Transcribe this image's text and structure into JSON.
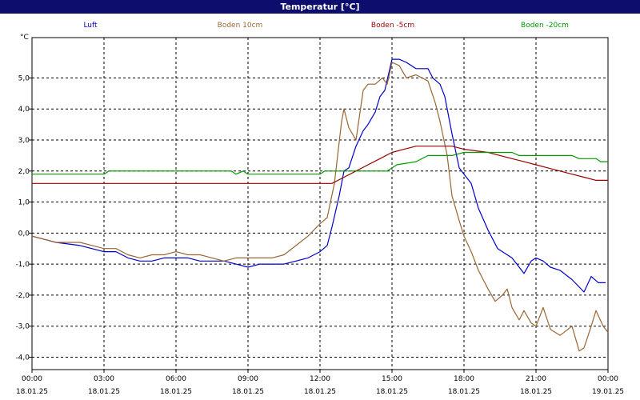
{
  "window": {
    "title": "Temperatur [°C]"
  },
  "chart_data": {
    "type": "line",
    "title": "Temperatur [°C]",
    "ylabel": "°C",
    "xlabel": "",
    "ylim": [
      -4.4,
      6.3
    ],
    "xlim_hours": [
      0,
      24
    ],
    "grid": true,
    "legend_position": "top",
    "y_ticks": [
      "5,0",
      "4,0",
      "3,0",
      "2,0",
      "1,0",
      "0,0",
      "-1,0",
      "-2,0",
      "-3,0",
      "-4,0"
    ],
    "x_ticks": [
      {
        "time": "00:00",
        "date": "18.01.25"
      },
      {
        "time": "03:00",
        "date": "18.01.25"
      },
      {
        "time": "06:00",
        "date": "18.01.25"
      },
      {
        "time": "09:00",
        "date": "18.01.25"
      },
      {
        "time": "12:00",
        "date": "18.01.25"
      },
      {
        "time": "15:00",
        "date": "18.01.25"
      },
      {
        "time": "18:00",
        "date": "18.01.25"
      },
      {
        "time": "21:00",
        "date": "18.01.25"
      },
      {
        "time": "00:00",
        "date": "19.01.25"
      }
    ],
    "series": [
      {
        "name": "Luft",
        "color": "#0000cc",
        "points": [
          [
            0,
            -0.1
          ],
          [
            0.5,
            -0.2
          ],
          [
            1,
            -0.3
          ],
          [
            2,
            -0.4
          ],
          [
            3,
            -0.6
          ],
          [
            3.5,
            -0.6
          ],
          [
            4,
            -0.8
          ],
          [
            4.5,
            -0.9
          ],
          [
            5,
            -0.9
          ],
          [
            5.5,
            -0.8
          ],
          [
            6,
            -0.8
          ],
          [
            6.5,
            -0.8
          ],
          [
            7,
            -0.9
          ],
          [
            8,
            -0.9
          ],
          [
            8.5,
            -1.0
          ],
          [
            9,
            -1.1
          ],
          [
            9.5,
            -1.0
          ],
          [
            10,
            -1.0
          ],
          [
            10.5,
            -1.0
          ],
          [
            11,
            -0.9
          ],
          [
            11.5,
            -0.8
          ],
          [
            12,
            -0.6
          ],
          [
            12.3,
            -0.4
          ],
          [
            12.5,
            0.2
          ],
          [
            12.8,
            1.2
          ],
          [
            13,
            2.0
          ],
          [
            13.2,
            2.1
          ],
          [
            13.5,
            2.8
          ],
          [
            13.8,
            3.3
          ],
          [
            14,
            3.5
          ],
          [
            14.3,
            3.9
          ],
          [
            14.5,
            4.4
          ],
          [
            14.7,
            4.6
          ],
          [
            15,
            5.6
          ],
          [
            15.3,
            5.6
          ],
          [
            15.6,
            5.5
          ],
          [
            16,
            5.3
          ],
          [
            16.5,
            5.3
          ],
          [
            16.7,
            5.0
          ],
          [
            17,
            4.8
          ],
          [
            17.2,
            4.4
          ],
          [
            17.5,
            3.2
          ],
          [
            17.8,
            2.1
          ],
          [
            18,
            1.9
          ],
          [
            18.3,
            1.6
          ],
          [
            18.6,
            0.8
          ],
          [
            19,
            0.1
          ],
          [
            19.4,
            -0.5
          ],
          [
            19.8,
            -0.7
          ],
          [
            20,
            -0.8
          ],
          [
            20.3,
            -1.1
          ],
          [
            20.5,
            -1.3
          ],
          [
            20.8,
            -0.9
          ],
          [
            21,
            -0.8
          ],
          [
            21.3,
            -0.9
          ],
          [
            21.6,
            -1.1
          ],
          [
            22,
            -1.2
          ],
          [
            22.5,
            -1.5
          ],
          [
            23,
            -1.9
          ],
          [
            23.3,
            -1.4
          ],
          [
            23.6,
            -1.6
          ],
          [
            23.9,
            -1.6
          ]
        ]
      },
      {
        "name": "Boden 10cm",
        "color": "#996633",
        "points": [
          [
            0,
            -0.1
          ],
          [
            0.5,
            -0.2
          ],
          [
            1,
            -0.3
          ],
          [
            2,
            -0.3
          ],
          [
            3,
            -0.5
          ],
          [
            3.5,
            -0.5
          ],
          [
            4,
            -0.7
          ],
          [
            4.5,
            -0.8
          ],
          [
            5,
            -0.7
          ],
          [
            5.5,
            -0.7
          ],
          [
            6,
            -0.6
          ],
          [
            6.5,
            -0.7
          ],
          [
            7,
            -0.7
          ],
          [
            7.5,
            -0.8
          ],
          [
            8,
            -0.9
          ],
          [
            8.5,
            -0.8
          ],
          [
            9,
            -0.8
          ],
          [
            10,
            -0.8
          ],
          [
            10.5,
            -0.7
          ],
          [
            11,
            -0.4
          ],
          [
            11.5,
            -0.1
          ],
          [
            12,
            0.3
          ],
          [
            12.3,
            0.5
          ],
          [
            12.6,
            1.6
          ],
          [
            12.9,
            3.6
          ],
          [
            13,
            4.0
          ],
          [
            13.2,
            3.4
          ],
          [
            13.5,
            3.0
          ],
          [
            13.8,
            4.6
          ],
          [
            14,
            4.8
          ],
          [
            14.3,
            4.8
          ],
          [
            14.6,
            5.0
          ],
          [
            14.8,
            4.8
          ],
          [
            15,
            5.5
          ],
          [
            15.3,
            5.4
          ],
          [
            15.6,
            5.0
          ],
          [
            16,
            5.1
          ],
          [
            16.5,
            4.9
          ],
          [
            16.8,
            4.2
          ],
          [
            17,
            3.6
          ],
          [
            17.3,
            2.5
          ],
          [
            17.5,
            1.2
          ],
          [
            17.8,
            0.4
          ],
          [
            18,
            -0.1
          ],
          [
            18.3,
            -0.6
          ],
          [
            18.6,
            -1.2
          ],
          [
            19,
            -1.8
          ],
          [
            19.3,
            -2.2
          ],
          [
            19.6,
            -2.0
          ],
          [
            19.8,
            -1.8
          ],
          [
            20,
            -2.4
          ],
          [
            20.3,
            -2.8
          ],
          [
            20.5,
            -2.5
          ],
          [
            20.8,
            -2.9
          ],
          [
            21,
            -3.0
          ],
          [
            21.3,
            -2.4
          ],
          [
            21.6,
            -3.1
          ],
          [
            22,
            -3.3
          ],
          [
            22.5,
            -3.0
          ],
          [
            22.8,
            -3.8
          ],
          [
            23,
            -3.7
          ],
          [
            23.3,
            -3.0
          ],
          [
            23.5,
            -2.5
          ],
          [
            23.8,
            -3.0
          ],
          [
            24,
            -3.2
          ]
        ]
      },
      {
        "name": "Boden -5cm",
        "color": "#990000",
        "points": [
          [
            0,
            1.6
          ],
          [
            12.5,
            1.6
          ],
          [
            13,
            1.8
          ],
          [
            13.5,
            2.0
          ],
          [
            14,
            2.2
          ],
          [
            14.5,
            2.4
          ],
          [
            15,
            2.6
          ],
          [
            15.5,
            2.7
          ],
          [
            16,
            2.8
          ],
          [
            17,
            2.8
          ],
          [
            17.5,
            2.8
          ],
          [
            18,
            2.7
          ],
          [
            19,
            2.6
          ],
          [
            19.5,
            2.5
          ],
          [
            20,
            2.4
          ],
          [
            20.5,
            2.3
          ],
          [
            21,
            2.2
          ],
          [
            21.5,
            2.1
          ],
          [
            22,
            2.0
          ],
          [
            22.5,
            1.9
          ],
          [
            23,
            1.8
          ],
          [
            23.5,
            1.7
          ],
          [
            24,
            1.7
          ]
        ]
      },
      {
        "name": "Boden -20cm",
        "color": "#009900",
        "points": [
          [
            0,
            1.9
          ],
          [
            3,
            1.9
          ],
          [
            3.2,
            2.0
          ],
          [
            8.3,
            2.0
          ],
          [
            8.5,
            1.9
          ],
          [
            8.8,
            2.0
          ],
          [
            9,
            1.9
          ],
          [
            12,
            1.9
          ],
          [
            12.2,
            2.0
          ],
          [
            14.8,
            2.0
          ],
          [
            15.2,
            2.2
          ],
          [
            16,
            2.3
          ],
          [
            16.5,
            2.5
          ],
          [
            17.5,
            2.5
          ],
          [
            18,
            2.6
          ],
          [
            20,
            2.6
          ],
          [
            20.3,
            2.5
          ],
          [
            22.5,
            2.5
          ],
          [
            22.8,
            2.4
          ],
          [
            23.5,
            2.4
          ],
          [
            23.7,
            2.3
          ],
          [
            24,
            2.3
          ]
        ]
      }
    ]
  }
}
